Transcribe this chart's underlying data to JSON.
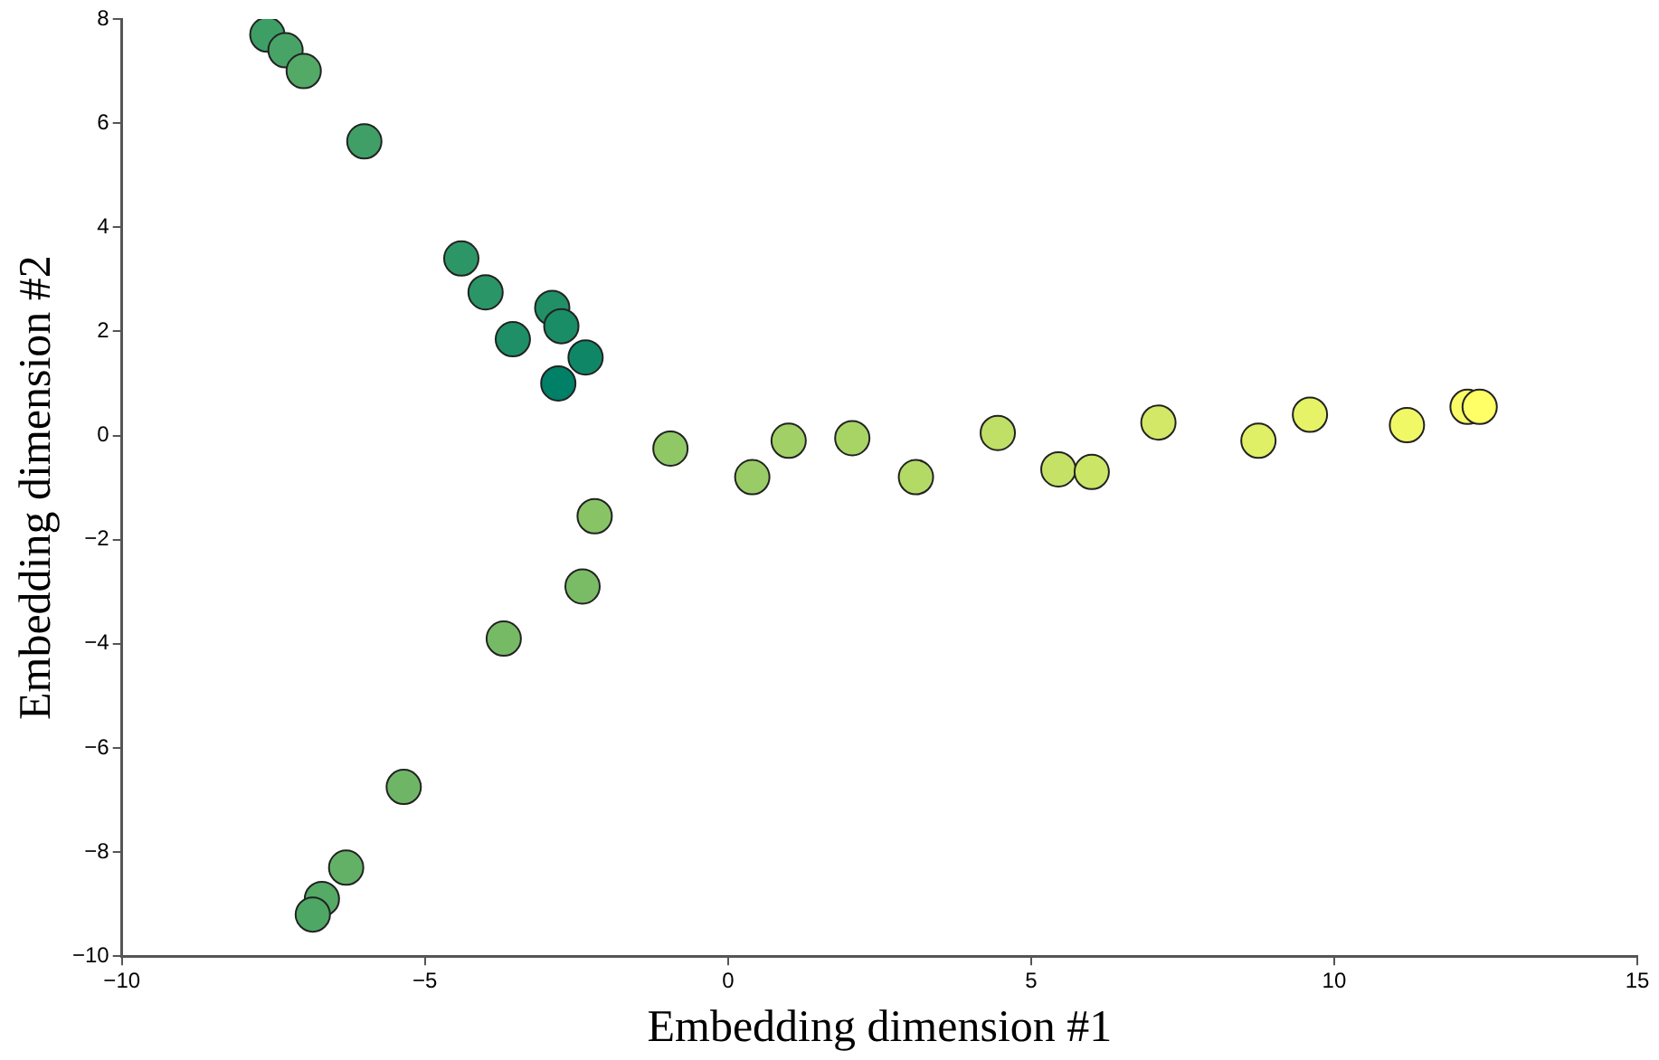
{
  "chart_data": {
    "type": "scatter",
    "xlabel": "Embedding dimension #1",
    "ylabel": "Embedding dimension #2",
    "xlim": [
      -10,
      15
    ],
    "xticks": [
      -10,
      -5,
      0,
      5,
      10,
      15
    ],
    "ylim": [
      -10,
      8
    ],
    "yticks": [
      -10,
      -8,
      -6,
      -4,
      -2,
      0,
      2,
      4,
      6,
      8
    ],
    "grid": false,
    "legend": false,
    "marker": "circle",
    "x": [
      -7.6,
      -7.3,
      -7.0,
      -6.0,
      -4.4,
      -4.0,
      -3.55,
      -2.9,
      -2.75,
      -2.35,
      -2.8,
      -2.2,
      -2.4,
      -3.7,
      -5.35,
      -6.3,
      -6.7,
      -6.85,
      -0.95,
      0.4,
      1.0,
      2.05,
      3.1,
      4.45,
      5.45,
      6.0,
      7.1,
      8.75,
      9.6,
      11.2,
      12.2,
      12.4
    ],
    "values": [
      7.7,
      7.4,
      7.0,
      5.65,
      3.4,
      2.75,
      1.85,
      2.45,
      2.1,
      1.5,
      1.0,
      -1.55,
      -2.9,
      -3.9,
      -6.75,
      -8.3,
      -8.9,
      -9.2,
      -0.25,
      -0.8,
      -0.1,
      -0.05,
      -0.8,
      0.05,
      -0.65,
      -0.7,
      0.25,
      -0.1,
      0.4,
      0.2,
      0.55,
      0.55
    ],
    "colors": [
      "#3d9e66",
      "#48a466",
      "#53aa66",
      "#3f9f66",
      "#2d9666",
      "#2a9566",
      "#1e8f66",
      "#219066",
      "#1a8c66",
      "#0f8766",
      "#008066",
      "#88c466",
      "#7abc66",
      "#76ba66",
      "#6eb666",
      "#63b166",
      "#55aa66",
      "#4fa766",
      "#90c866",
      "#99cc66",
      "#a0d066",
      "#a8d466",
      "#b4da66",
      "#bfdf66",
      "#c5e266",
      "#cbe566",
      "#d2e866",
      "#dfef66",
      "#e6f366",
      "#f0f866",
      "#f9fc66",
      "#ffff66"
    ]
  }
}
